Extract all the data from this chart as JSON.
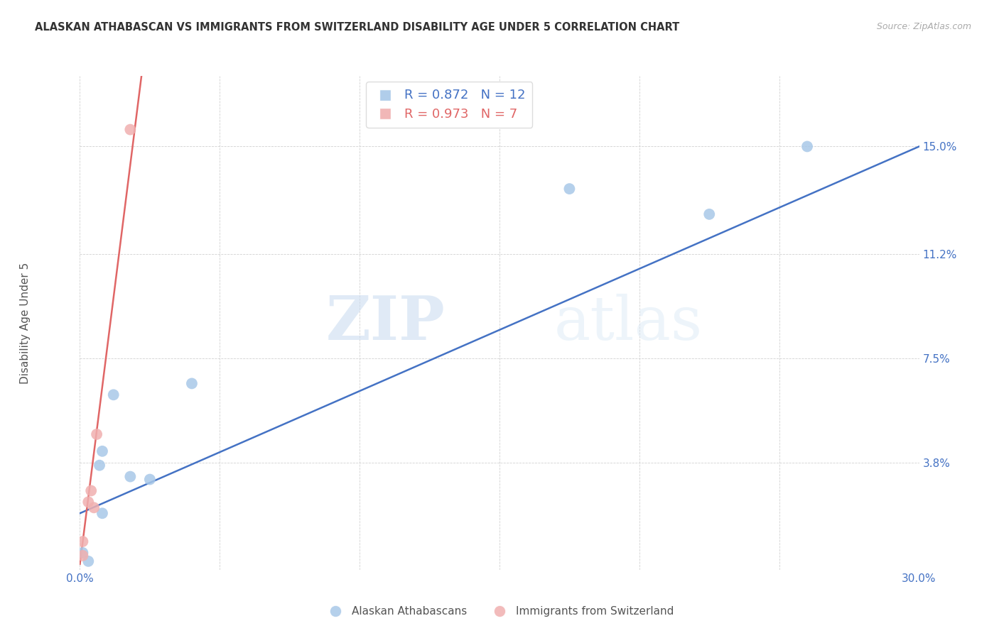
{
  "title": "ALASKAN ATHABASCAN VS IMMIGRANTS FROM SWITZERLAND DISABILITY AGE UNDER 5 CORRELATION CHART",
  "source": "Source: ZipAtlas.com",
  "ylabel": "Disability Age Under 5",
  "xlim": [
    0.0,
    0.3
  ],
  "ylim": [
    0.0,
    0.175
  ],
  "yticks": [
    0.038,
    0.075,
    0.112,
    0.15
  ],
  "ytick_labels": [
    "3.8%",
    "7.5%",
    "11.2%",
    "15.0%"
  ],
  "xticks": [
    0.0,
    0.05,
    0.1,
    0.15,
    0.2,
    0.25,
    0.3
  ],
  "xtick_labels": [
    "0.0%",
    "",
    "",
    "",
    "",
    "",
    "30.0%"
  ],
  "blue_r": 0.872,
  "blue_n": 12,
  "pink_r": 0.973,
  "pink_n": 7,
  "blue_color": "#a8c8e8",
  "pink_color": "#f0b0b0",
  "blue_line_color": "#4472c4",
  "pink_line_color": "#e06666",
  "legend_label_blue": "Alaskan Athabascans",
  "legend_label_pink": "Immigrants from Switzerland",
  "watermark_zip": "ZIP",
  "watermark_atlas": "atlas",
  "blue_points_x": [
    0.001,
    0.003,
    0.007,
    0.008,
    0.012,
    0.018,
    0.025,
    0.04,
    0.175,
    0.225,
    0.26,
    0.008
  ],
  "blue_points_y": [
    0.006,
    0.003,
    0.037,
    0.042,
    0.062,
    0.033,
    0.032,
    0.066,
    0.135,
    0.126,
    0.15,
    0.02
  ],
  "pink_points_x": [
    0.001,
    0.001,
    0.003,
    0.004,
    0.005,
    0.006,
    0.018
  ],
  "pink_points_y": [
    0.005,
    0.01,
    0.024,
    0.028,
    0.022,
    0.048,
    0.156
  ],
  "blue_line_x": [
    0.0,
    0.3
  ],
  "blue_line_y": [
    0.02,
    0.15
  ],
  "pink_line_x": [
    0.0,
    0.022
  ],
  "pink_line_y": [
    0.002,
    0.175
  ]
}
